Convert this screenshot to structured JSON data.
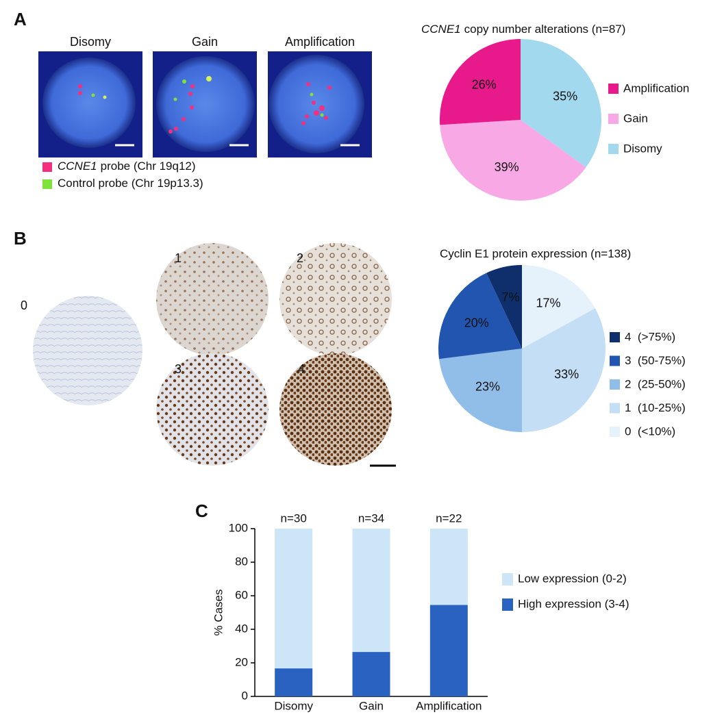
{
  "panel_labels": [
    "A",
    "B",
    "C"
  ],
  "fish": {
    "labels": [
      "Disomy",
      "Gain",
      "Amplification"
    ],
    "probes": [
      {
        "gene": "CCNE1",
        "text": "probe (Chr 19q12)",
        "color": "#f2307f"
      },
      {
        "text": "Control probe (Chr 19p13.3)",
        "color": "#7ee23a"
      }
    ]
  },
  "ihc": {
    "scores": [
      "0",
      "1",
      "2",
      "3",
      "4"
    ]
  },
  "chart_data": [
    {
      "type": "pie",
      "title_italic": "CCNE1",
      "title": "copy number alterations (n=87)",
      "categories": [
        "Disomy",
        "Gain",
        "Amplification"
      ],
      "values": [
        35,
        39,
        26
      ],
      "value_labels": [
        "35%",
        "39%",
        "26%"
      ],
      "colors": [
        "#a3d9ef",
        "#f9a8e6",
        "#e8198b"
      ],
      "legend": "right"
    },
    {
      "type": "pie",
      "title": "Cyclin E1 protein expression (n=138)",
      "categories": [
        "0  (<10%)",
        "1  (10-25%)",
        "2  (25-50%)",
        "3  (50-75%)",
        "4  (>75%)"
      ],
      "values": [
        17,
        33,
        23,
        20,
        7
      ],
      "value_labels": [
        "17%",
        "33%",
        "23%",
        "20%",
        "7%"
      ],
      "colors": [
        "#e5f1fb",
        "#c3def5",
        "#91bee9",
        "#2255b0",
        "#0e2f6b"
      ],
      "legend": "right"
    },
    {
      "type": "stacked_bar",
      "ylabel": "% Cases",
      "categories": [
        "Disomy",
        "Gain",
        "Amplification"
      ],
      "annotations": [
        "n=30",
        "n=34",
        "n=22"
      ],
      "series": [
        {
          "name": "High expression (3-4)",
          "color": "#2a62c1",
          "values": [
            16.7,
            26.5,
            54.5
          ]
        },
        {
          "name": "Low expression (0-2)",
          "color": "#cce6f7",
          "values": [
            83.3,
            73.5,
            45.5
          ]
        }
      ],
      "ylim": [
        0,
        100
      ],
      "yticks": [
        0,
        20,
        40,
        60,
        80,
        100
      ],
      "legend": "right"
    }
  ]
}
